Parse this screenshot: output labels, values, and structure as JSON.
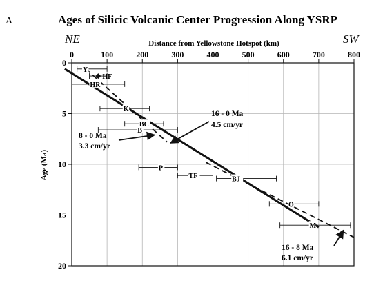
{
  "panel_label": "A",
  "colors": {
    "ink": "#111111",
    "grid": "#b5b5b5",
    "paper": "#ffffff"
  },
  "chart_data": {
    "type": "scatter",
    "title": "Ages of Silicic Volcanic Center Progression Along YSRP",
    "xlabel": "Distance from Yellowstone Hotspot (km)",
    "ylabel": "Age (Ma)",
    "x_left_label": "NE",
    "x_right_label": "SW",
    "xlim": [
      0,
      800
    ],
    "ylim": [
      0,
      20
    ],
    "y_inverted": true,
    "x_axis_position": "top",
    "xticks": [
      0,
      100,
      200,
      300,
      400,
      500,
      600,
      700,
      800
    ],
    "yticks": [
      0,
      5,
      10,
      15,
      20
    ],
    "grid": true,
    "points": [
      {
        "label": "Y",
        "x": 40,
        "y": 0.6,
        "xerr": [
          15,
          100
        ],
        "label_side": "left"
      },
      {
        "label": "HF",
        "x": 75,
        "y": 1.3,
        "xerr": [
          50,
          100
        ],
        "label_side": "right",
        "marker": "diamond"
      },
      {
        "label": "HR",
        "x": 75,
        "y": 2.1,
        "xerr": [
          0,
          150
        ],
        "label_side": "left"
      },
      {
        "label": "K",
        "x": 155,
        "y": 4.5,
        "xerr": [
          80,
          220
        ],
        "label_side": "left"
      },
      {
        "label": "BC",
        "x": 215,
        "y": 6.0,
        "xerr": [
          150,
          260
        ],
        "label_side": "left"
      },
      {
        "label": "B",
        "x": 195,
        "y": 6.6,
        "xerr": [
          75,
          300
        ],
        "label_side": "left"
      },
      {
        "label": "P",
        "x": 255,
        "y": 10.3,
        "xerr": [
          190,
          300
        ],
        "label_side": "left"
      },
      {
        "label": "TF",
        "x": 355,
        "y": 11.1,
        "xerr": [
          300,
          400
        ],
        "label_side": "left"
      },
      {
        "label": "BJ",
        "x": 460,
        "y": 11.4,
        "xerr": [
          410,
          580
        ],
        "label_side": "right"
      },
      {
        "label": "O",
        "x": 620,
        "y": 13.9,
        "xerr": [
          560,
          700
        ],
        "label_side": "right"
      },
      {
        "label": "M",
        "x": 680,
        "y": 16.0,
        "xerr": [
          590,
          790
        ],
        "label_side": "right"
      }
    ],
    "lines": [
      {
        "name": "16 - 0 Ma",
        "rate": "4.5 cm/yr",
        "style": "solid",
        "from": [
          -20,
          0.6
        ],
        "to": [
          700,
          16.2
        ]
      },
      {
        "name": "8 - 0 Ma",
        "rate": "3.3 cm/yr",
        "style": "dashed",
        "from": [
          40,
          0.6
        ],
        "to": [
          270,
          7.8
        ]
      },
      {
        "name": "16 - 8 Ma",
        "rate": "6.1 cm/yr",
        "style": "dashed",
        "from": [
          380,
          9.8
        ],
        "to": [
          800,
          17.2
        ]
      }
    ],
    "annotations": [
      {
        "line1": "16 - 0 Ma",
        "line2": "4.5 cm/yr",
        "points_to": [
          280,
          7.9
        ]
      },
      {
        "line1": "8 - 0 Ma",
        "line2": "3.3 cm/yr",
        "points_to": [
          235,
          7.1
        ]
      },
      {
        "line1": "16 - 8 Ma",
        "line2": "6.1 cm/yr",
        "points_to": [
          770,
          16.5
        ]
      }
    ]
  }
}
